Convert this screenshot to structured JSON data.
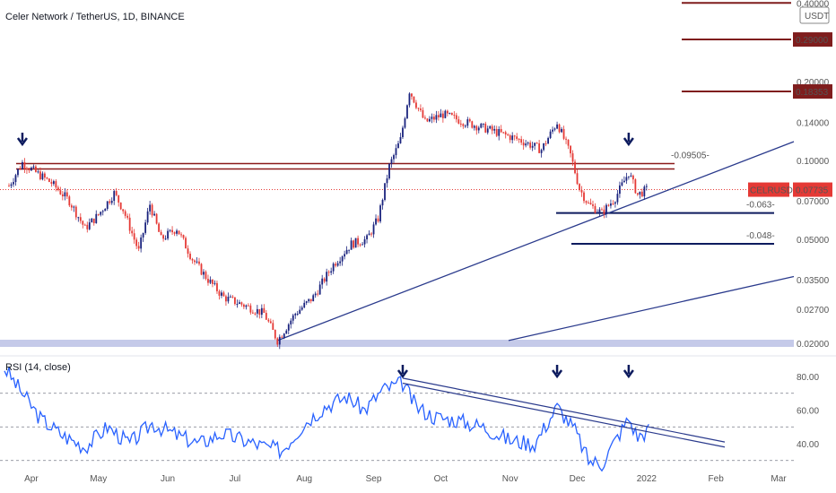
{
  "header": {
    "title": "Celer Network / TetherUS, 1D, BINANCE",
    "currency": "USDT"
  },
  "colors": {
    "up": "#26a69a",
    "down": "#ef5350",
    "candle_up": "#1a237e",
    "candle_down": "#e53935",
    "resistance": "#8b1a1a",
    "support": "#0d1b5e",
    "trend": "#2a3a8c",
    "rsi": "#2962ff",
    "price_tag": "#e53935",
    "level_tag": "#7f1d1d",
    "band": "#c5cae9"
  },
  "chart_data": [
    {
      "type": "candlestick",
      "title": "Celer Network / TetherUS, 1D, BINANCE",
      "y_scale": "log",
      "y_ticks": [
        "0.40000",
        "0.29000",
        "0.20000",
        "0.14000",
        "0.10000",
        "0.07000",
        "0.05000",
        "0.03500",
        "0.02700",
        "0.02000"
      ],
      "x_ticks": [
        "Apr",
        "May",
        "Jun",
        "Jul",
        "Aug",
        "Sep",
        "Oct",
        "Nov",
        "Dec",
        "2022",
        "Feb",
        "Mar"
      ],
      "series": [
        {
          "x": "2021-03-22",
          "close": 0.08
        },
        {
          "x": "2021-03-28",
          "close": 0.098
        },
        {
          "x": "2021-04-03",
          "close": 0.09
        },
        {
          "x": "2021-04-10",
          "close": 0.082
        },
        {
          "x": "2021-04-18",
          "close": 0.07
        },
        {
          "x": "2021-04-25",
          "close": 0.055
        },
        {
          "x": "2021-05-01",
          "close": 0.062
        },
        {
          "x": "2021-05-08",
          "close": 0.075
        },
        {
          "x": "2021-05-12",
          "close": 0.065
        },
        {
          "x": "2021-05-19",
          "close": 0.045
        },
        {
          "x": "2021-05-24",
          "close": 0.068
        },
        {
          "x": "2021-05-29",
          "close": 0.05
        },
        {
          "x": "2021-06-05",
          "close": 0.055
        },
        {
          "x": "2021-06-12",
          "close": 0.042
        },
        {
          "x": "2021-06-19",
          "close": 0.035
        },
        {
          "x": "2021-06-26",
          "close": 0.03
        },
        {
          "x": "2021-07-05",
          "close": 0.028
        },
        {
          "x": "2021-07-14",
          "close": 0.026
        },
        {
          "x": "2021-07-20",
          "close": 0.0205
        },
        {
          "x": "2021-07-28",
          "close": 0.026
        },
        {
          "x": "2021-08-05",
          "close": 0.03
        },
        {
          "x": "2021-08-14",
          "close": 0.04
        },
        {
          "x": "2021-08-22",
          "close": 0.048
        },
        {
          "x": "2021-08-29",
          "close": 0.05
        },
        {
          "x": "2021-09-03",
          "close": 0.06
        },
        {
          "x": "2021-09-08",
          "close": 0.095
        },
        {
          "x": "2021-09-13",
          "close": 0.12
        },
        {
          "x": "2021-09-17",
          "close": 0.185
        },
        {
          "x": "2021-09-24",
          "close": 0.14
        },
        {
          "x": "2021-10-02",
          "close": 0.15
        },
        {
          "x": "2021-10-12",
          "close": 0.14
        },
        {
          "x": "2021-10-24",
          "close": 0.13
        },
        {
          "x": "2021-11-05",
          "close": 0.12
        },
        {
          "x": "2021-11-15",
          "close": 0.11
        },
        {
          "x": "2021-11-22",
          "close": 0.14
        },
        {
          "x": "2021-11-28",
          "close": 0.105
        },
        {
          "x": "2021-12-02",
          "close": 0.078
        },
        {
          "x": "2021-12-06",
          "close": 0.068
        },
        {
          "x": "2021-12-12",
          "close": 0.063
        },
        {
          "x": "2021-12-18",
          "close": 0.072
        },
        {
          "x": "2021-12-24",
          "close": 0.09
        },
        {
          "x": "2021-12-28",
          "close": 0.074
        },
        {
          "x": "2022-01-01",
          "close": 0.0773
        }
      ],
      "horizontal_levels": [
        {
          "value": 0.095,
          "label": "-0.09505-",
          "kind": "resistance"
        },
        {
          "value": 0.063,
          "label": "-0.063-",
          "kind": "support"
        },
        {
          "value": 0.048,
          "label": "-0.048-",
          "kind": "support"
        },
        {
          "value": 0.02,
          "kind": "band"
        }
      ],
      "price_tags": [
        {
          "label": "USDT",
          "value": 0.4
        },
        {
          "label": "0.29000",
          "value": 0.29
        },
        {
          "label": "0.18353",
          "value": 0.18353
        }
      ],
      "current_price": {
        "symbol": "CELRUSDT",
        "value": "0.07735",
        "numeric": 0.07735
      },
      "arrows": [
        "2021-03-28",
        "2021-12-24"
      ]
    },
    {
      "type": "line",
      "title": "RSI (14, close)",
      "y_ticks": [
        "80.00",
        "60.00",
        "40.00"
      ],
      "y_range": [
        20,
        100
      ],
      "series": [
        {
          "x": "2021-03-20",
          "y": 85
        },
        {
          "x": "2021-03-28",
          "y": 70
        },
        {
          "x": "2021-04-05",
          "y": 55
        },
        {
          "x": "2021-04-15",
          "y": 45
        },
        {
          "x": "2021-04-25",
          "y": 38
        },
        {
          "x": "2021-05-05",
          "y": 50
        },
        {
          "x": "2021-05-15",
          "y": 40
        },
        {
          "x": "2021-05-25",
          "y": 52
        },
        {
          "x": "2021-06-05",
          "y": 45
        },
        {
          "x": "2021-06-15",
          "y": 40
        },
        {
          "x": "2021-06-25",
          "y": 46
        },
        {
          "x": "2021-07-05",
          "y": 42
        },
        {
          "x": "2021-07-15",
          "y": 38
        },
        {
          "x": "2021-07-22",
          "y": 36
        },
        {
          "x": "2021-08-01",
          "y": 52
        },
        {
          "x": "2021-08-10",
          "y": 62
        },
        {
          "x": "2021-08-20",
          "y": 68
        },
        {
          "x": "2021-08-28",
          "y": 60
        },
        {
          "x": "2021-09-05",
          "y": 72
        },
        {
          "x": "2021-09-14",
          "y": 76
        },
        {
          "x": "2021-09-20",
          "y": 62
        },
        {
          "x": "2021-09-28",
          "y": 56
        },
        {
          "x": "2021-10-08",
          "y": 54
        },
        {
          "x": "2021-10-20",
          "y": 50
        },
        {
          "x": "2021-11-01",
          "y": 42
        },
        {
          "x": "2021-11-12",
          "y": 40
        },
        {
          "x": "2021-11-22",
          "y": 62
        },
        {
          "x": "2021-11-30",
          "y": 48
        },
        {
          "x": "2021-12-06",
          "y": 30
        },
        {
          "x": "2021-12-12",
          "y": 28
        },
        {
          "x": "2021-12-18",
          "y": 42
        },
        {
          "x": "2021-12-24",
          "y": 55
        },
        {
          "x": "2021-12-28",
          "y": 44
        },
        {
          "x": "2022-01-02",
          "y": 48
        }
      ],
      "reference_lines": [
        70,
        50,
        30
      ],
      "arrows": [
        "2021-09-14",
        "2021-11-22",
        "2021-12-24"
      ]
    }
  ]
}
